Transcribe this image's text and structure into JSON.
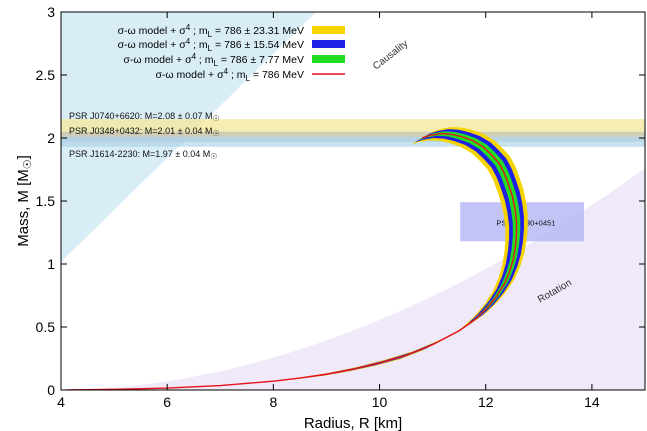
{
  "chart_data": {
    "type": "line",
    "xlabel": "Radius, R [km]",
    "ylabel": "Mass, M [M",
    "ylabel_sun": "☉",
    "ylabel_close": "]",
    "xlim": [
      4,
      15
    ],
    "ylim": [
      0,
      3
    ],
    "xticks": [
      4,
      6,
      8,
      10,
      12,
      14
    ],
    "yticks": [
      0,
      0.5,
      1,
      1.5,
      2,
      2.5,
      3
    ],
    "ytick_labels": [
      "0",
      "0.5",
      "1",
      "1.5",
      "2",
      "2.5",
      "3"
    ],
    "series": [
      {
        "name": "σ-ω model + σ⁴ ; mL = 786 ± 23.31 MeV",
        "prefix": "σ-ω model + σ",
        "sup": "4",
        "mid": " ; m",
        "sub": "L",
        "suffix": " = 786 ± 23.31  MeV",
        "color": "#f5d400",
        "kind": "band",
        "halfwidth": 0.21
      },
      {
        "name": "σ-ω model + σ⁴ ; mL = 786 ± 15.54 MeV",
        "prefix": "σ-ω model + σ",
        "sup": "4",
        "mid": " ; m",
        "sub": "L",
        "suffix": " = 786 ± 15.54  MeV",
        "color": "#1f1fe8",
        "kind": "band",
        "halfwidth": 0.14
      },
      {
        "name": "σ-ω model + σ⁴ ; mL = 786 ± 7.77 MeV",
        "prefix": "σ-ω model + σ",
        "sup": "4",
        "mid": " ; m",
        "sub": "L",
        "suffix": " = 786 ± 7.77  MeV",
        "color": "#22dd22",
        "kind": "band",
        "halfwidth": 0.07
      },
      {
        "name": "σ-ω model + σ⁴ ; mL = 786 MeV",
        "prefix": "σ-ω model + σ",
        "sup": "4",
        "mid": " ; m",
        "sub": "L",
        "suffix": " = 786  MeV",
        "color": "#e8111b",
        "kind": "line",
        "halfwidth": 0
      }
    ],
    "central_curve": {
      "x": [
        4.1,
        5.0,
        6.0,
        7.0,
        8.0,
        8.5,
        9.0,
        9.5,
        10.0,
        10.5,
        11.0,
        11.5,
        11.8,
        12.0,
        12.2,
        12.35,
        12.45,
        12.52,
        12.56,
        12.58,
        12.58,
        12.55,
        12.5,
        12.43,
        12.35,
        12.25,
        12.1,
        11.95,
        11.75,
        11.55,
        11.35,
        11.15,
        10.95,
        10.8
      ],
      "y": [
        0.0,
        0.005,
        0.015,
        0.035,
        0.07,
        0.095,
        0.125,
        0.165,
        0.215,
        0.275,
        0.36,
        0.47,
        0.56,
        0.64,
        0.74,
        0.84,
        0.94,
        1.04,
        1.14,
        1.24,
        1.34,
        1.44,
        1.54,
        1.63,
        1.72,
        1.8,
        1.87,
        1.93,
        1.98,
        2.01,
        2.03,
        2.035,
        2.02,
        2.0
      ]
    },
    "pulsars": [
      {
        "name": "PSR J0740+6620",
        "label": "PSR J0740+6620: M=2.08 ± 0.07 M",
        "sun": "☉",
        "mass": 2.08,
        "err": 0.07,
        "color": "#f3e79a",
        "opacity": 0.75
      },
      {
        "name": "PSR J0348+0432",
        "label": "PSR J0348+0432: M=2.01 ± 0.04 M",
        "sun": "☉",
        "mass": 2.01,
        "err": 0.04,
        "color": "#b9b9b9",
        "opacity": 0.6
      },
      {
        "name": "PSR J1614-2230",
        "label": "PSR J1614-2230: M=1.97 ± 0.04 M",
        "sun": "☉",
        "mass": 1.97,
        "err": 0.04,
        "color": "#a9d3ea",
        "opacity": 0.65
      }
    ],
    "nicer_box": {
      "label": "PSR J0030+0451",
      "x": [
        11.52,
        13.85
      ],
      "y": [
        1.18,
        1.49
      ],
      "color": "#b7b9f4"
    },
    "regions": [
      {
        "label": "Causality",
        "color": "#c9e5f4"
      },
      {
        "label": "Rotation",
        "color": "#ece4f7"
      }
    ],
    "legend_position": "top-left",
    "grid": false
  }
}
